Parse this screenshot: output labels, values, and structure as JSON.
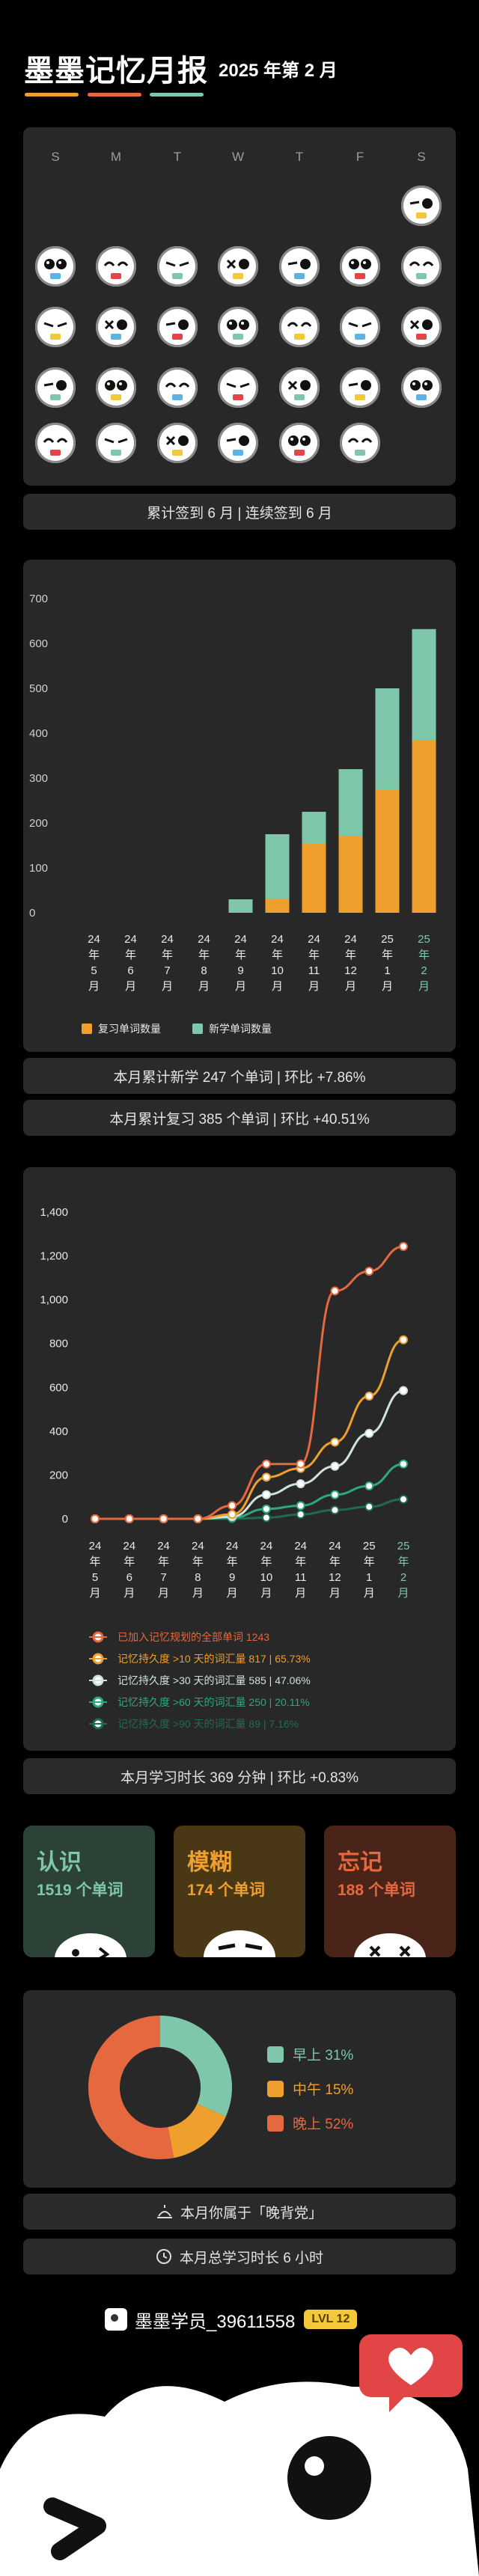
{
  "header": {
    "title": "墨墨记忆月报",
    "subtitle": "2025 年第 2 月"
  },
  "colors": {
    "orange": "#ee9f2e",
    "teal": "#7ec7aa",
    "red": "#e5683f",
    "green": "#2da87f",
    "bg": "#000000",
    "card": "#282828"
  },
  "calendar": {
    "weekdays": [
      "S",
      "M",
      "T",
      "W",
      "T",
      "F",
      "S"
    ],
    "faces": 28,
    "summary": "累计签到 6 月 | 连续签到 6 月"
  },
  "bar_chart": {
    "summary_new": "本月累计新学 247 个单词 | 环比 +7.86%",
    "summary_review": "本月累计复习 385 个单词 | 环比 +40.51%"
  },
  "line_chart": {
    "summary": "本月学习时长 369 分钟 | 环比 +0.83%"
  },
  "chart_data": [
    {
      "type": "bar",
      "stacked": true,
      "categories": [
        "24年5月",
        "24年6月",
        "24年7月",
        "24年8月",
        "24年9月",
        "24年10月",
        "24年11月",
        "24年12月",
        "25年1月",
        "25年2月"
      ],
      "series": [
        {
          "name": "复习单词数量",
          "color": "#ee9f2e",
          "values": [
            0,
            0,
            0,
            0,
            0,
            30,
            155,
            170,
            275,
            385
          ]
        },
        {
          "name": "新学单词数量",
          "color": "#7ec7aa",
          "values": [
            0,
            0,
            0,
            0,
            30,
            145,
            70,
            150,
            225,
            247
          ]
        }
      ],
      "yticks": [
        0,
        100,
        200,
        300,
        400,
        500,
        600,
        700
      ],
      "ylim": [
        0,
        700
      ],
      "legend_position": "bottom"
    },
    {
      "type": "line",
      "categories": [
        "24年5月",
        "24年6月",
        "24年7月",
        "24年8月",
        "24年9月",
        "24年10月",
        "24年11月",
        "24年12月",
        "25年1月",
        "25年2月"
      ],
      "series": [
        {
          "name": "已加入记忆规划的全部单词 1243",
          "color": "#e5683f",
          "values": [
            0,
            0,
            0,
            0,
            60,
            250,
            250,
            1040,
            1130,
            1243
          ]
        },
        {
          "name": "记忆持久度 >10 天的词汇量 817 | 65.73%",
          "color": "#ee9f2e",
          "values": [
            0,
            0,
            0,
            0,
            20,
            190,
            230,
            350,
            560,
            817
          ]
        },
        {
          "name": "记忆持久度 >30 天的词汇量 585 | 47.06%",
          "color": "#cfe3da",
          "values": [
            0,
            0,
            0,
            0,
            10,
            110,
            160,
            240,
            390,
            585
          ]
        },
        {
          "name": "记忆持久度 >60 天的词汇量 250 | 20.11%",
          "color": "#2da87f",
          "values": [
            0,
            0,
            0,
            0,
            5,
            45,
            60,
            110,
            150,
            250
          ]
        },
        {
          "name": "记忆持久度 >90 天的词汇量 89 | 7.16%",
          "color": "#1f6b52",
          "values": [
            0,
            0,
            0,
            0,
            0,
            5,
            20,
            40,
            55,
            89
          ]
        }
      ],
      "yticks": [
        0,
        200,
        400,
        600,
        800,
        1000,
        1200,
        1400
      ],
      "yticklabels": [
        "0",
        "200",
        "400",
        "600",
        "800",
        "1,000",
        "1,200",
        "1,400"
      ],
      "ylim": [
        0,
        1400
      ],
      "legend_position": "bottom"
    },
    {
      "type": "pie",
      "donut": true,
      "labels": [
        "早上",
        "中午",
        "晚上"
      ],
      "values": [
        31,
        15,
        52
      ],
      "legend": [
        "早上 31%",
        "中午 15%",
        "晚上 52%"
      ],
      "colors": [
        "#7ec7aa",
        "#ee9f2e",
        "#e5683f"
      ],
      "legend_position": "right"
    }
  ],
  "mood": {
    "know": {
      "title": "认识",
      "count": "1519 个单词"
    },
    "fuzzy": {
      "title": "模糊",
      "count": "174 个单词"
    },
    "forget": {
      "title": "忘记",
      "count": "188 个单词"
    }
  },
  "footer": {
    "owl_type": "本月你属于「晚背党」",
    "total_time": "本月总学习时长 6 小时",
    "user": "墨墨学员_39611558",
    "level": "LVL 12"
  }
}
